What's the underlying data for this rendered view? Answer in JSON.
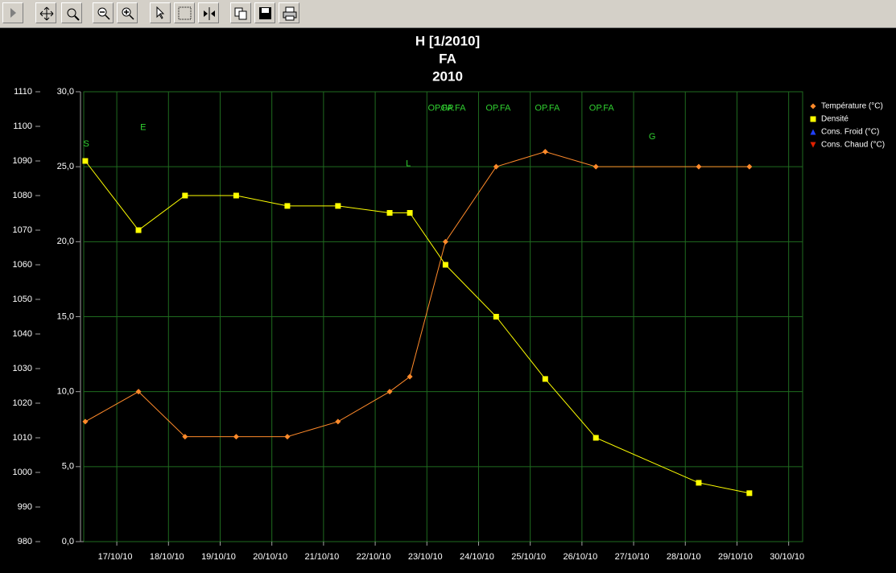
{
  "chart_data": {
    "type": "line",
    "title": [
      "H [1/2010]",
      "FA",
      "2010"
    ],
    "xlim": [
      16.36,
      30.27
    ],
    "xticks": [
      {
        "value": 17,
        "label": "17/10/10"
      },
      {
        "value": 18,
        "label": "18/10/10"
      },
      {
        "value": 19,
        "label": "19/10/10"
      },
      {
        "value": 20,
        "label": "20/10/10"
      },
      {
        "value": 21,
        "label": "21/10/10"
      },
      {
        "value": 22,
        "label": "22/10/10"
      },
      {
        "value": 23,
        "label": "23/10/10"
      },
      {
        "value": 24,
        "label": "24/10/10"
      },
      {
        "value": 25,
        "label": "25/10/10"
      },
      {
        "value": 26,
        "label": "26/10/10"
      },
      {
        "value": 27,
        "label": "27/10/10"
      },
      {
        "value": 28,
        "label": "28/10/10"
      },
      {
        "value": 29,
        "label": "29/10/10"
      },
      {
        "value": 30,
        "label": "30/10/10"
      }
    ],
    "ylim": [
      980,
      1110
    ],
    "yticks": [
      980,
      990,
      1000,
      1010,
      1020,
      1030,
      1040,
      1050,
      1060,
      1070,
      1080,
      1090,
      1100,
      1110
    ],
    "y2lim": [
      0,
      30
    ],
    "y2ticks": [
      {
        "value": 0,
        "label": "0,0"
      },
      {
        "value": 5,
        "label": "5,0"
      },
      {
        "value": 10,
        "label": "10,0"
      },
      {
        "value": 15,
        "label": "15,0"
      },
      {
        "value": 20,
        "label": "20,0"
      },
      {
        "value": 25,
        "label": "25,0"
      },
      {
        "value": 30,
        "label": "30,0"
      }
    ],
    "grid": true,
    "legend": "top-right",
    "series": [
      {
        "name": "Température (°C)",
        "color": "#ff8a2a",
        "marker": "diamond",
        "axis": "y2",
        "x": [
          16.39,
          17.42,
          18.32,
          19.31,
          20.3,
          21.28,
          22.28,
          22.67,
          23.36,
          24.34,
          25.29,
          26.27,
          28.26,
          29.24
        ],
        "values": [
          8,
          10,
          7,
          7,
          7,
          8,
          10,
          11,
          20,
          25,
          26,
          25,
          25,
          25
        ]
      },
      {
        "name": "Densité",
        "color": "#ffff00",
        "marker": "square",
        "x": [
          16.39,
          17.42,
          18.32,
          19.31,
          20.3,
          21.28,
          22.28,
          22.67,
          23.36,
          24.34,
          25.29,
          26.27,
          28.26,
          29.24
        ],
        "values": [
          1090,
          1070,
          1080,
          1080,
          1077,
          1077,
          1075,
          1075,
          1060,
          1045,
          1027,
          1010,
          997,
          994
        ]
      },
      {
        "name": "Cons. Froid (°C)",
        "color": "#2040ff",
        "marker": "triangle",
        "axis": "y2",
        "x": [],
        "values": []
      },
      {
        "name": "Cons. Chaud (°C)",
        "color": "#e02000",
        "marker": "triangle-down",
        "axis": "y2",
        "x": [],
        "values": []
      }
    ],
    "annotations": [
      {
        "text": "S",
        "x": 16.41,
        "y": 26.5
      },
      {
        "text": "E",
        "x": 17.51,
        "y": 27.6
      },
      {
        "text": "L",
        "x": 22.64,
        "y": 25.2
      },
      {
        "text": "OP.FA",
        "x": 23.26,
        "y": 28.9
      },
      {
        "text": "OP.FA",
        "x": 23.51,
        "y": 28.9
      },
      {
        "text": "OP.FA",
        "x": 24.38,
        "y": 28.9
      },
      {
        "text": "OP.FA",
        "x": 25.33,
        "y": 28.9
      },
      {
        "text": "OP.FA",
        "x": 26.38,
        "y": 28.9
      },
      {
        "text": "G",
        "x": 27.36,
        "y": 27.0
      }
    ]
  }
}
